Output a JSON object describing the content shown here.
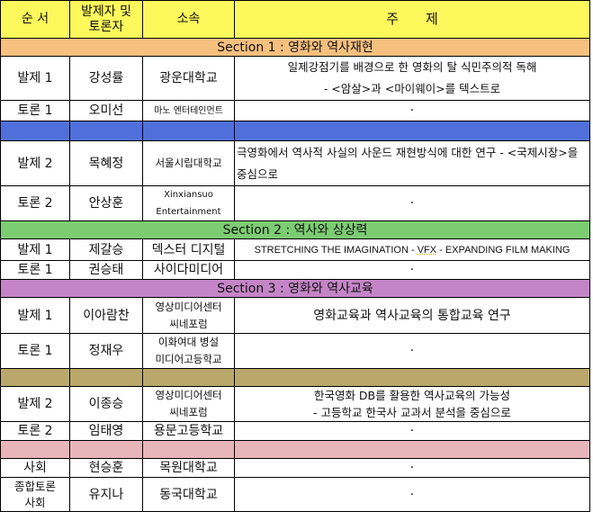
{
  "header": {
    "order": "순 서",
    "person": "발제자 및\n토론자",
    "affiliation": "소속",
    "topic": "주　　제"
  },
  "colors": {
    "header": "#fdf85c",
    "section1": "#f6c07e",
    "spacer1": "#4f70db",
    "section2": "#7ccc72",
    "section3": "#c485c7",
    "spacer2": "#b9a86a",
    "spacer3": "#e8b6ba"
  },
  "section1": {
    "title": "Section 1 : 영화와 역사재현",
    "rows": [
      {
        "order": "발제 1",
        "person": "강성률",
        "aff": "광운대학교",
        "topic1": "일제강점기를 배경으로 한 영화의 탈 식민주의적 독해",
        "topic2": "- <암살>과 <마이웨이>를 텍스트로"
      },
      {
        "order": "토론 1",
        "person": "오미선",
        "aff": "마노 엔터테인먼트",
        "topic1": "·"
      },
      {
        "order": "발제 2",
        "person": "목혜정",
        "aff": "서울시립대학교",
        "topic1": "극영화에서 역사적 사실의 사운드 재현방식에 대한 연구 - <국제시장>을 중심으로"
      },
      {
        "order": "토론 2",
        "person": "안상훈",
        "aff1": "Xinxiansuo",
        "aff2": "Entertainment",
        "topic1": "·"
      }
    ]
  },
  "section2": {
    "title": "Section 2 : 역사와 상상력",
    "rows": [
      {
        "order": "발제 1",
        "person": "제갈승",
        "aff": "덱스터 디지털",
        "topic_a": "STRETCHING THE IMAGINATION - ",
        "topic_b": "VFX",
        "topic_c": " - EXPANDING FILM MAKING"
      },
      {
        "order": "토론 1",
        "person": "권승태",
        "aff": "사이다미디어",
        "topic1": "·"
      }
    ]
  },
  "section3": {
    "title": "Section 3 : 영화와 역사교육",
    "rows": [
      {
        "order": "발제 1",
        "person": "이아람찬",
        "aff1": "영상미디어센터",
        "aff2": "씨네포럼",
        "topic1": "영화교육과 역사교육의 통합교육 연구"
      },
      {
        "order": "토론 1",
        "person": "정재우",
        "aff1": "이화여대 병설",
        "aff2": "미디어고등학교",
        "topic1": "·"
      },
      {
        "order": "발제 2",
        "person": "이종승",
        "aff1": "영상미디어센터",
        "aff2": "씨네포럼",
        "topic1": "한국영화 DB를 활용한 역사교육의 가능성",
        "topic2": "- 고등학교 한국사 교과서 분석을 중심으로"
      },
      {
        "order": "토론 2",
        "person": "임태영",
        "aff": "용문고등학교",
        "topic1": "·"
      }
    ]
  },
  "closing": [
    {
      "order": "사회",
      "person": "현승훈",
      "aff": "목원대학교",
      "topic1": "·"
    },
    {
      "order1": "종합토론",
      "order2": "사회",
      "person": "유지나",
      "aff": "동국대학교",
      "topic1": "·"
    }
  ]
}
